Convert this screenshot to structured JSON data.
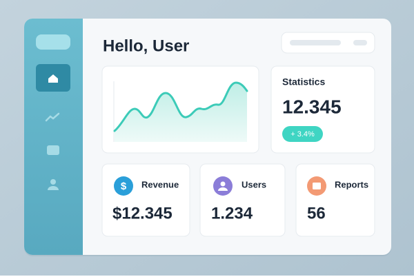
{
  "header": {
    "title": "Hello, User"
  },
  "statistics": {
    "title": "Statistics",
    "value": "12.345",
    "change": "+ 3.4%"
  },
  "cards": [
    {
      "label": "Revenue",
      "value": "$12.345"
    },
    {
      "label": "Users",
      "value": "1.234"
    },
    {
      "label": "Reports",
      "value": "56"
    }
  ]
}
